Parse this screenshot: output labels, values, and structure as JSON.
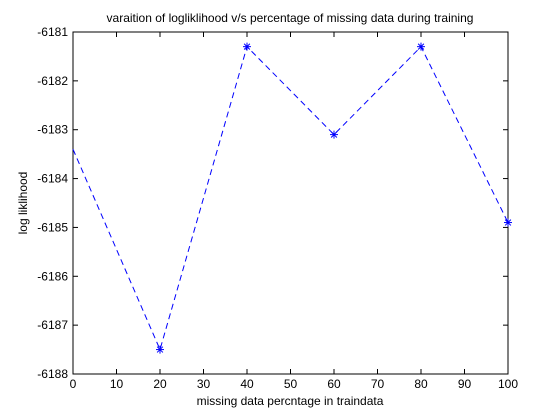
{
  "chart_data": {
    "type": "line",
    "title": "varaition of logliklihood v/s percentage of missing data during training",
    "xlabel": "missing data percntage in traindata",
    "ylabel": "log liklihood",
    "xlim": [
      0,
      100
    ],
    "ylim": [
      -6188,
      -6181
    ],
    "xticks": [
      "0",
      "10",
      "20",
      "30",
      "40",
      "50",
      "60",
      "70",
      "80",
      "90",
      "100"
    ],
    "yticks": [
      "-6188",
      "-6187",
      "-6186",
      "-6185",
      "-6184",
      "-6183",
      "-6182",
      "-6181"
    ],
    "grid": false,
    "legend": "none",
    "series": [
      {
        "line_style": "dashed",
        "marker": "asterisk",
        "color": "#0000ff",
        "x": [
          0,
          20,
          40,
          60,
          80,
          100
        ],
        "y": [
          -6183.4,
          -6187.5,
          -6181.3,
          -6183.1,
          -6181.3,
          -6184.9
        ],
        "marked": [
          false,
          true,
          true,
          true,
          true,
          true
        ]
      }
    ]
  }
}
